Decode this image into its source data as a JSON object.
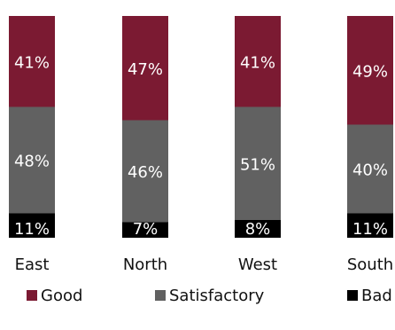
{
  "chart_data": {
    "type": "bar",
    "stacked": true,
    "normalized_percent": true,
    "categories": [
      "East",
      "North",
      "West",
      "South"
    ],
    "series": [
      {
        "name": "Good",
        "values": [
          41,
          47,
          41,
          49
        ],
        "color": "#7b1a32",
        "label_color": "#ffffff"
      },
      {
        "name": "Satisfactory",
        "values": [
          48,
          46,
          51,
          40
        ],
        "color": "#616161",
        "label_color": "#ffffff"
      },
      {
        "name": "Bad",
        "values": [
          11,
          7,
          8,
          11
        ],
        "color": "#000000",
        "label_color": "#ffffff"
      }
    ],
    "value_suffix": "%",
    "legend_position": "bottom",
    "grid": false
  }
}
